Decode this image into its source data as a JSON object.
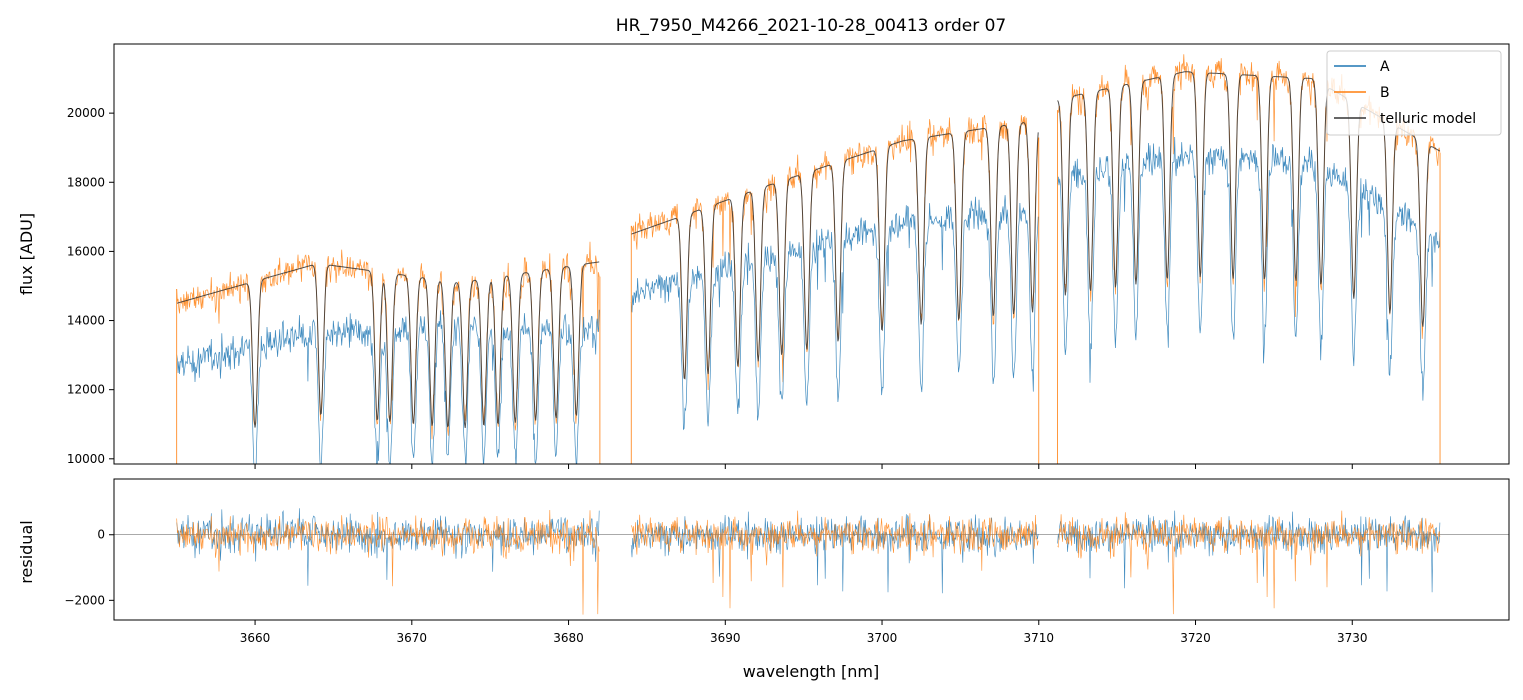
{
  "chart_data": {
    "type": "line",
    "title": "HR_7950_M4266_2021-10-28_00413  order 07",
    "xlabel": "wavelength [nm]",
    "xlim": [
      3651,
      3740
    ],
    "x_ticks": [
      3660,
      3670,
      3680,
      3690,
      3700,
      3710,
      3720,
      3730
    ],
    "x_tick_labels": [
      "3660",
      "3670",
      "3680",
      "3690",
      "3700",
      "3710",
      "3720",
      "3730"
    ],
    "legend": {
      "position": "top-right",
      "entries": [
        {
          "label": "A",
          "color": "#1f77b4"
        },
        {
          "label": "B",
          "color": "#ff7f0e"
        },
        {
          "label": "telluric model",
          "color": "#333333"
        }
      ]
    },
    "panels": [
      {
        "name": "flux",
        "ylabel": "flux [ADU]",
        "ylim": [
          9850,
          22000
        ],
        "y_ticks": [
          10000,
          12000,
          14000,
          16000,
          18000,
          20000
        ],
        "y_tick_labels": [
          "10000",
          "12000",
          "14000",
          "16000",
          "18000",
          "20000"
        ],
        "segments": [
          {
            "x_range": [
              3655.0,
              3682.0
            ],
            "A_level": [
              12700,
              13600,
              13900,
              13700
            ],
            "B_level": [
              14500,
              15700,
              15800,
              15600
            ],
            "model_level": [
              14500,
              15650,
              15100,
              15700
            ]
          },
          {
            "x_range": [
              3684.0,
              3710.0
            ],
            "A_level": [
              14800,
              15800,
              16800,
              17300
            ],
            "B_level": [
              16500,
              18000,
              19300,
              19800
            ],
            "model_level": [
              16500,
              17900,
              19200,
              19800
            ]
          },
          {
            "x_range": [
              3711.2,
              3735.6
            ],
            "A_level": [
              18200,
              18800,
              18600,
              16300
            ],
            "B_level": [
              20500,
              21400,
              21200,
              18700
            ],
            "model_level": [
              20400,
              21200,
              21000,
              18900
            ]
          }
        ],
        "telluric_lines": [
          3660.0,
          3664.2,
          3667.8,
          3668.6,
          3670.1,
          3671.3,
          3672.3,
          3673.4,
          3674.6,
          3675.5,
          3676.6,
          3677.9,
          3679.2,
          3680.5,
          3687.4,
          3688.9,
          3690.8,
          3692.1,
          3693.6,
          3695.2,
          3697.2,
          3700.0,
          3702.5,
          3704.9,
          3707.1,
          3708.4,
          3709.6,
          3711.7,
          3713.3,
          3714.9,
          3716.2,
          3718.2,
          3720.3,
          3722.4,
          3724.4,
          3726.4,
          3728.0,
          3730.1,
          3732.4,
          3734.5
        ]
      },
      {
        "name": "residual",
        "ylabel": "residual",
        "ylim": [
          -2600,
          1700
        ],
        "y_ticks": [
          -2000,
          0
        ],
        "y_tick_labels": [
          "−2000",
          "0"
        ],
        "zero_line": true,
        "typical_scatter": {
          "A": 500,
          "B": 450
        }
      }
    ],
    "series": [
      {
        "name": "A",
        "color": "#1f77b4"
      },
      {
        "name": "B",
        "color": "#ff7f0e"
      },
      {
        "name": "telluric model",
        "color": "#333333"
      }
    ]
  }
}
